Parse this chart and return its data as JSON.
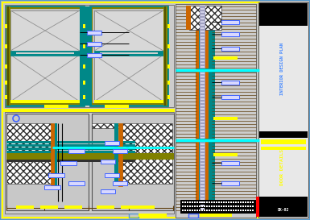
{
  "bg": "#b8b8b8",
  "yellow": "#ffff00",
  "cyan": "#00ffff",
  "teal": "#007878",
  "teal2": "#008888",
  "dk_yellow": "#808000",
  "orange": "#cc6600",
  "blue_label": "#4466ff",
  "black": "#000000",
  "white": "#ffffff",
  "red": "#ff0000",
  "lt_gray": "#c8c8c8",
  "panel_bg": "#d0d0d0",
  "gray": "#909090",
  "dk_gray": "#505050",
  "brown": "#604010",
  "title1": "INTERIOR DESIGN PLAN",
  "title2": "DOOR DETAILS",
  "title3": "DK-02"
}
